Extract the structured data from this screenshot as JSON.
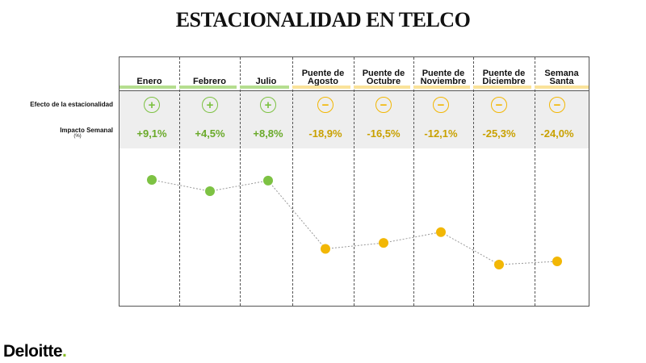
{
  "title": "ESTACIONALIDAD EN TELCO",
  "row_labels": {
    "effect": "Efecto de la estacionalidad",
    "impact": "Impacto Semanal",
    "impact_unit": "(%)"
  },
  "colors": {
    "positive": "#7dc243",
    "negative": "#f2b705",
    "positive_text": "#6aaa2a",
    "negative_text": "#c9a100"
  },
  "icons": {
    "positive": "plus-circle-icon",
    "negative": "minus-circle-icon",
    "positive_glyph": "+",
    "negative_glyph": "−"
  },
  "logo": {
    "text": "Deloitte",
    "dot": "."
  },
  "chart_data": {
    "type": "line",
    "title": "ESTACIONALIDAD EN TELCO",
    "categories": [
      "Enero",
      "Febrero",
      "Julio",
      "Puente de Agosto",
      "Puente de Octubre",
      "Puente de Noviembre",
      "Puente de Diciembre",
      "Semana Santa"
    ],
    "header_lines": [
      [
        "Enero"
      ],
      [
        "Febrero"
      ],
      [
        "Julio"
      ],
      [
        "Puente de",
        "Agosto"
      ],
      [
        "Puente de",
        "Octubre"
      ],
      [
        "Puente de",
        "Noviembre"
      ],
      [
        "Puente de",
        "Diciembre"
      ],
      [
        "Semana",
        "Santa"
      ]
    ],
    "values": [
      9.1,
      4.5,
      8.8,
      -18.9,
      -16.5,
      -12.1,
      -25.3,
      -24.0
    ],
    "value_labels": [
      "+9,1%",
      "+4,5%",
      "+8,8%",
      "-18,9%",
      "-16,5%",
      "-12,1%",
      "-25,3%",
      "-24,0%"
    ],
    "effect": [
      "positive",
      "positive",
      "positive",
      "negative",
      "negative",
      "negative",
      "negative",
      "negative"
    ],
    "ylabel": "",
    "ylim": [
      -30,
      15
    ],
    "grid": false
  }
}
